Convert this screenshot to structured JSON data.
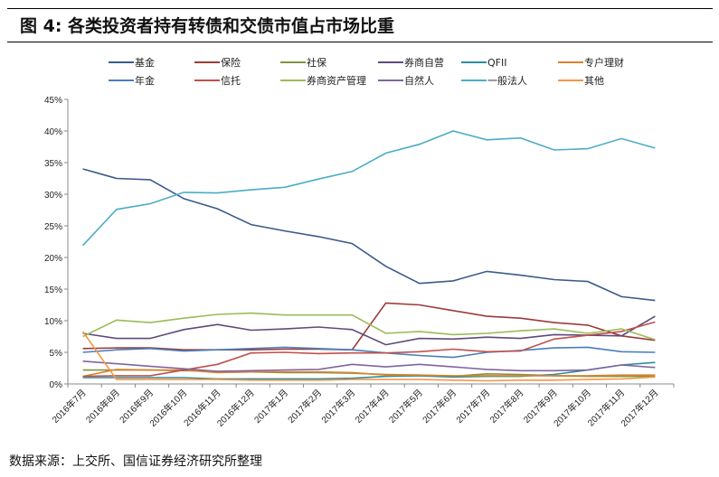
{
  "title": "图 4:  各类投资者持有转债和交债市值占市场比重",
  "source": "数据来源：上交所、国信证券经济研究所整理",
  "chart_data": {
    "type": "line",
    "title": "图 4:  各类投资者持有转债和交债市值占市场比重",
    "xlabel": "",
    "ylabel": "",
    "ylim": [
      0,
      45
    ],
    "yticks": [
      "0%",
      "5%",
      "10%",
      "15%",
      "20%",
      "25%",
      "30%",
      "35%",
      "40%",
      "45%"
    ],
    "grid": false,
    "legend": "top",
    "categories": [
      "2016年7月",
      "2016年8月",
      "2016年9月",
      "2016年10月",
      "2016年11月",
      "2016年12月",
      "2017年1月",
      "2017年2月",
      "2017年3月",
      "2017年4月",
      "2017年5月",
      "2017年6月",
      "2017年7月",
      "2017年8月",
      "2017年9月",
      "2017年10月",
      "2017年11月",
      "2017年12月"
    ],
    "series": [
      {
        "name": "基金",
        "color": "#3b5b8a",
        "values": [
          34,
          32.5,
          32.3,
          29.3,
          27.7,
          25.2,
          24.2,
          23.3,
          22.2,
          18.6,
          15.9,
          16.3,
          17.8,
          17.2,
          16.5,
          16.2,
          13.8,
          13.2
        ]
      },
      {
        "name": "保险",
        "color": "#9b3b38",
        "values": [
          5.6,
          5.7,
          5.7,
          5.4,
          5.4,
          5.4,
          5.5,
          5.5,
          5.4,
          12.8,
          12.5,
          11.6,
          10.7,
          10.4,
          9.7,
          9.3,
          7.6,
          6.9
        ]
      },
      {
        "name": "社保",
        "color": "#7f9440",
        "values": [
          2.2,
          2.2,
          2.2,
          2.1,
          2.0,
          1.9,
          1.8,
          1.8,
          1.7,
          1.5,
          1.4,
          1.2,
          1.6,
          1.5,
          1.3,
          1.2,
          1.2,
          1.2
        ]
      },
      {
        "name": "券商自营",
        "color": "#5f4a7a",
        "values": [
          8.0,
          7.2,
          7.2,
          8.6,
          9.4,
          8.5,
          8.7,
          9.0,
          8.6,
          6.2,
          7.2,
          7.1,
          7.4,
          7.2,
          7.8,
          7.7,
          7.6,
          10.7
        ]
      },
      {
        "name": "QFII",
        "color": "#2f8c9c",
        "values": [
          1.0,
          1.0,
          1.0,
          1.0,
          0.8,
          0.8,
          0.8,
          0.8,
          0.9,
          1.2,
          1.3,
          1.1,
          1.2,
          1.2,
          1.5,
          2.2,
          3.0,
          3.4
        ]
      },
      {
        "name": "专户理财",
        "color": "#d9822b",
        "values": [
          1.2,
          2.3,
          2.2,
          2.2,
          1.8,
          1.9,
          1.9,
          1.9,
          1.8,
          1.4,
          1.4,
          1.3,
          1.3,
          1.3,
          1.3,
          1.3,
          1.4,
          1.4
        ]
      },
      {
        "name": "年金",
        "color": "#4a7ebb",
        "values": [
          5.0,
          5.4,
          5.6,
          5.2,
          5.4,
          5.6,
          5.8,
          5.6,
          5.4,
          4.9,
          4.5,
          4.2,
          5.0,
          5.3,
          5.7,
          5.8,
          5.1,
          5.0
        ]
      },
      {
        "name": "信托",
        "color": "#c0504d",
        "values": [
          1.2,
          1.3,
          1.3,
          2.2,
          3.1,
          4.9,
          5.0,
          4.8,
          4.9,
          4.9,
          5.1,
          5.5,
          5.1,
          5.2,
          7.1,
          7.7,
          8.3,
          9.8
        ]
      },
      {
        "name": "券商资产管理",
        "color": "#9bbb59",
        "values": [
          7.5,
          10.1,
          9.7,
          10.4,
          11.0,
          11.2,
          10.9,
          10.9,
          10.9,
          8.0,
          8.3,
          7.8,
          8.0,
          8.4,
          8.7,
          8.0,
          8.7,
          7.0
        ]
      },
      {
        "name": "自然人",
        "color": "#8064a2",
        "values": [
          3.6,
          3.2,
          2.8,
          2.4,
          2.0,
          2.1,
          2.2,
          2.3,
          3.1,
          2.7,
          3.1,
          2.7,
          2.3,
          2.1,
          2.1,
          2.2,
          3.0,
          2.6
        ]
      },
      {
        "name": "一般法人",
        "color": "#4bacc6",
        "values": [
          21.9,
          27.6,
          28.5,
          30.3,
          30.2,
          30.7,
          31.1,
          32.4,
          33.6,
          36.5,
          37.9,
          40,
          38.6,
          38.9,
          37,
          37.2,
          38.8,
          37.3
        ]
      },
      {
        "name": "其他",
        "color": "#f79646",
        "values": [
          8.3,
          0.7,
          0.7,
          0.7,
          0.7,
          0.6,
          0.6,
          0.6,
          0.7,
          0.7,
          0.7,
          0.6,
          0.5,
          0.6,
          0.6,
          0.7,
          0.8,
          1.1
        ]
      }
    ]
  }
}
